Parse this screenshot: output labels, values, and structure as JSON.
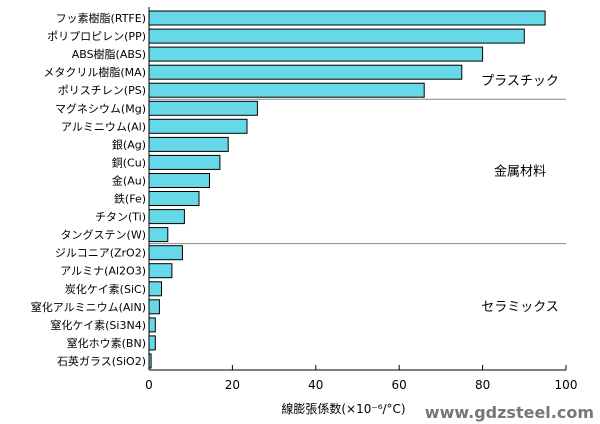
{
  "chart_data": {
    "type": "bar",
    "orientation": "horizontal",
    "categories": [
      "フッ素樹脂(RTFE)",
      "ポリプロピレン(PP)",
      "ABS樹脂(ABS)",
      "メタクリル樹脂(MA)",
      "ポリスチレン(PS)",
      "マグネシウム(Mg)",
      "アルミニウム(Al)",
      "銀(Ag)",
      "銅(Cu)",
      "金(Au)",
      "鉄(Fe)",
      "チタン(Ti)",
      "タングステン(W)",
      "ジルコニア(ZrO2)",
      "アルミナ(Al2O3)",
      "炭化ケイ素(SiC)",
      "窒化アルミニウム(AlN)",
      "窒化ケイ素(Si3N4)",
      "窒化ホウ素(BN)",
      "石英ガラス(SiO2)"
    ],
    "values": [
      95,
      90,
      80,
      75,
      66,
      26,
      23.5,
      19,
      17,
      14.5,
      12,
      8.5,
      4.5,
      8,
      5.5,
      3,
      2.5,
      1.5,
      1.5,
      0.5
    ],
    "groups": [
      {
        "label": "プラスチック",
        "start": 0,
        "end": 4
      },
      {
        "label": "金属材料",
        "start": 5,
        "end": 12
      },
      {
        "label": "セラミックス",
        "start": 13,
        "end": 19
      }
    ],
    "xlabel": "線膨張係数(×10⁻⁶/°C)",
    "xlim": [
      0,
      100
    ],
    "xticks": [
      0,
      20,
      40,
      60,
      80,
      100
    ],
    "bar_color": "#66d9e8",
    "bar_border": "#000000",
    "grid": false
  },
  "watermark": "www.gdzsteel.com"
}
